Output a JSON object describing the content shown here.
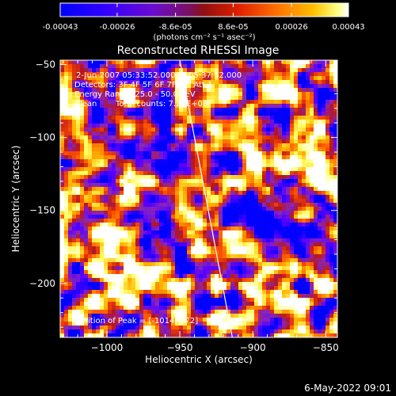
{
  "colorbar": {
    "tick_labels": [
      "-0.00043",
      "-0.00026",
      "-8.6e-05",
      "8.6e-05",
      "0.00026",
      "0.00043"
    ],
    "tick_values": [
      -0.00043,
      -0.00026,
      -8.6e-05,
      8.6e-05,
      0.00026,
      0.00043
    ],
    "range": [
      -0.00043,
      0.00043
    ],
    "unit_label": "(photons cm⁻² s⁻¹ asec⁻²)"
  },
  "annotations": {
    "time_range": "2-Jun-2007 05:33:52.000 to 05:37:52.000",
    "detectors": "Detectors: 3F 4F 5F 6F 7F 8F, Att 1",
    "energy_range": "Energy Range: 25.0 - 50.0 keV",
    "clean_label": "Clean",
    "total_counts": "Total counts: 7.29E+03",
    "peak": "Position of Peak = [-1014,-172]"
  },
  "footer_date": "6-May-2022 09:01",
  "chart_data": {
    "type": "heatmap",
    "title": "Reconstructed RHESSI Image",
    "xlabel": "Heliocentric X (arcsec)",
    "ylabel": "Heliocentric Y (arcsec)",
    "xlim": [
      -1032,
      -842
    ],
    "ylim": [
      -237,
      -47
    ],
    "x_ticks": [
      -1000,
      -950,
      -900,
      -850
    ],
    "x_tick_labels": [
      "−1000",
      "−950",
      "−900",
      "−850"
    ],
    "y_ticks": [
      -200,
      -150,
      -100,
      -50
    ],
    "y_tick_labels": [
      "−200",
      "−150",
      "−100",
      "−50"
    ],
    "limb_line": [
      [
        -950,
        -47
      ],
      [
        -914,
        -237
      ]
    ],
    "peak_position": [
      -1014,
      -172
    ],
    "colormap": [
      "#0000ff",
      "#5a00ff",
      "#8c28b4",
      "#b4141e",
      "#ff5000",
      "#ffb400",
      "#ffff64",
      "#ffffff"
    ],
    "grid": false
  }
}
